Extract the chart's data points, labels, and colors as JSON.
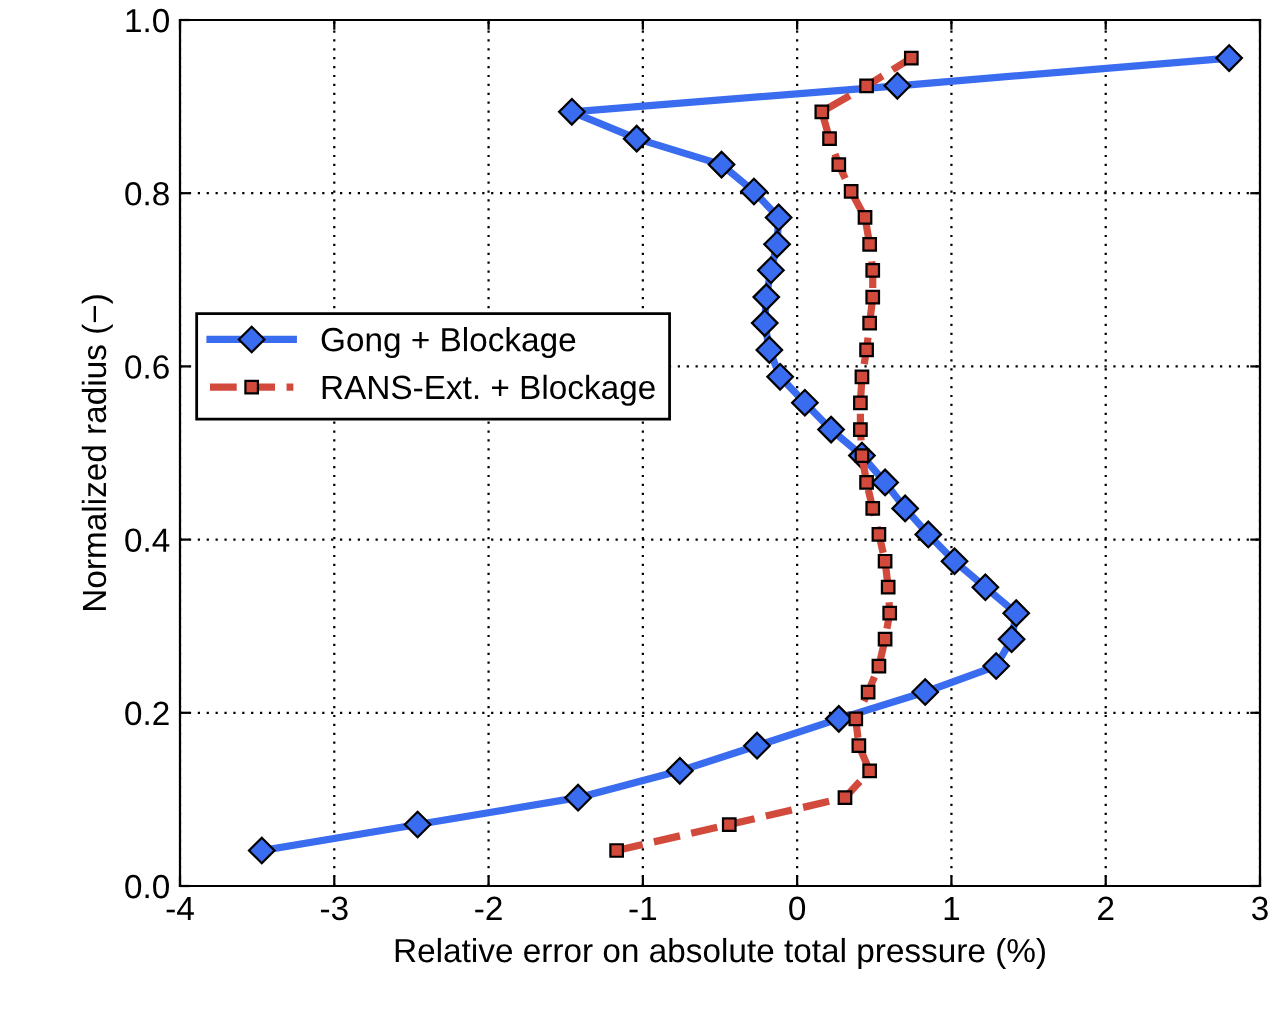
{
  "chart_data": {
    "type": "line",
    "xlabel": "Relative error on absolute total pressure (%)",
    "ylabel": "Normalized radius (−)",
    "xlim": [
      -4,
      3
    ],
    "xticks": [
      -4,
      -3,
      -2,
      -1,
      0,
      1,
      2,
      3
    ],
    "ylim": [
      0,
      1
    ],
    "yticks": [
      {
        "value": 0,
        "label": "0.0"
      },
      {
        "value": 0.2,
        "label": "0.2"
      },
      {
        "value": 0.4,
        "label": "0.4"
      },
      {
        "value": 0.6,
        "label": "0.6"
      },
      {
        "value": 0.8,
        "label": "0.8"
      },
      {
        "value": 1,
        "label": "1.0"
      }
    ],
    "grid": true,
    "legend": "left",
    "series": [
      {
        "name": "Gong + Blockage",
        "color": "#3a6cf0",
        "marker": "diamond",
        "line_style": "solid",
        "x": [
          -3.47,
          -2.46,
          -1.42,
          -0.76,
          -0.26,
          0.27,
          0.83,
          1.29,
          1.39,
          1.42,
          1.22,
          1.02,
          0.85,
          0.7,
          0.57,
          0.42,
          0.22,
          0.05,
          -0.11,
          -0.18,
          -0.21,
          -0.2,
          -0.17,
          -0.13,
          -0.12,
          -0.28,
          -0.49,
          -1.04,
          -1.46,
          0.65,
          2.8
        ],
        "values": [
          0.041,
          0.071,
          0.102,
          0.133,
          0.162,
          0.193,
          0.224,
          0.254,
          0.285,
          0.315,
          0.345,
          0.375,
          0.406,
          0.436,
          0.466,
          0.497,
          0.527,
          0.558,
          0.588,
          0.619,
          0.65,
          0.68,
          0.711,
          0.741,
          0.772,
          0.802,
          0.833,
          0.863,
          0.894,
          0.924,
          0.956
        ]
      },
      {
        "name": "RANS-Ext. + Blockage",
        "color": "#d24a3c",
        "marker": "square",
        "line_style": "dashed",
        "x": [
          -1.17,
          -0.44,
          0.31,
          0.47,
          0.4,
          0.38,
          0.46,
          0.53,
          0.57,
          0.6,
          0.59,
          0.57,
          0.53,
          0.49,
          0.45,
          0.42,
          0.41,
          0.41,
          0.42,
          0.45,
          0.47,
          0.49,
          0.49,
          0.47,
          0.44,
          0.35,
          0.27,
          0.21,
          0.16,
          0.45,
          0.74
        ],
        "values": [
          0.041,
          0.071,
          0.102,
          0.133,
          0.162,
          0.193,
          0.224,
          0.254,
          0.285,
          0.315,
          0.345,
          0.375,
          0.406,
          0.436,
          0.466,
          0.497,
          0.527,
          0.558,
          0.588,
          0.619,
          0.65,
          0.68,
          0.711,
          0.741,
          0.772,
          0.802,
          0.833,
          0.863,
          0.894,
          0.924,
          0.956
        ]
      }
    ]
  }
}
